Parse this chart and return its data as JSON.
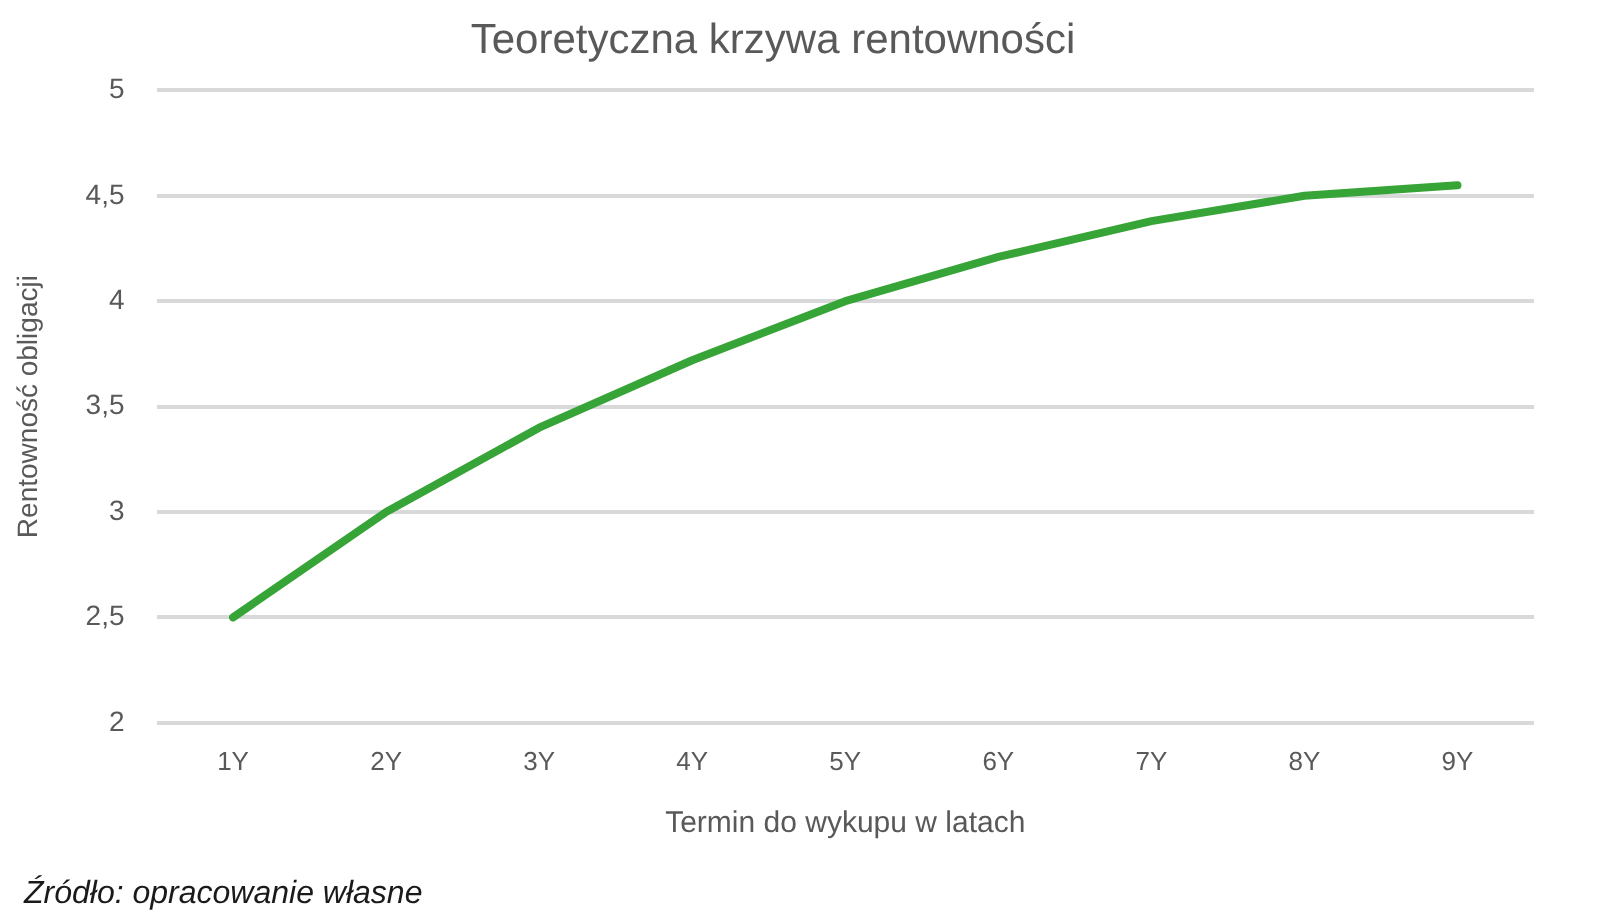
{
  "chart_data": {
    "type": "line",
    "title": "Teoretyczna krzywa rentowności",
    "xlabel": "Termin do wykupu w latach",
    "ylabel": "Rentowność obligacji",
    "categories": [
      "1Y",
      "2Y",
      "3Y",
      "4Y",
      "5Y",
      "6Y",
      "7Y",
      "8Y",
      "9Y"
    ],
    "series": [
      {
        "color": "#37a437",
        "values": [
          2.5,
          3.0,
          3.4,
          3.72,
          4.0,
          4.21,
          4.38,
          4.5,
          4.55
        ]
      }
    ],
    "ylim": [
      2,
      5
    ],
    "yticks": [
      2,
      {
        "value": 2.5,
        "label": "2,5"
      },
      3,
      {
        "value": 3.5,
        "label": "3,5"
      },
      4,
      {
        "value": 4.5,
        "label": "4,5"
      },
      5
    ],
    "grid": "y",
    "annotations": [
      "Źródło: opracowanie własne"
    ]
  }
}
